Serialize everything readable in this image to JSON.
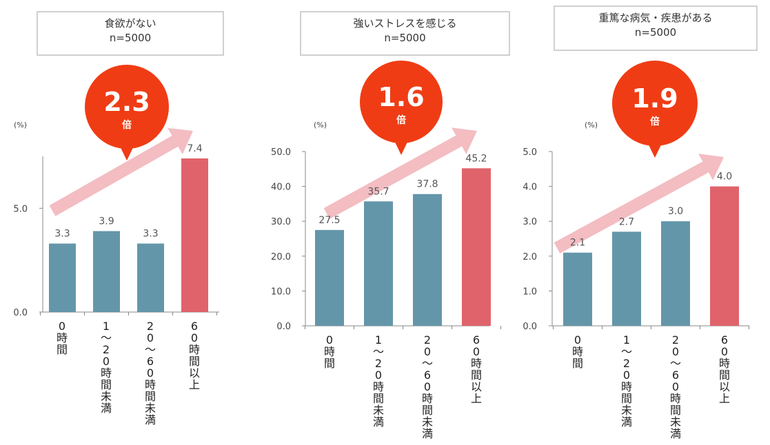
{
  "chart_data": [
    {
      "type": "bar",
      "title": "食欲がない",
      "subtitle": "n=5000",
      "unit": "(%)",
      "categories": [
        "0時間",
        "1～20時間未満",
        "20～60時間未満",
        "60時間以上"
      ],
      "values": [
        3.3,
        3.9,
        3.3,
        7.4
      ],
      "value_labels": [
        "3.3",
        "3.9",
        "3.3",
        "7.4"
      ],
      "yticks": [
        "0.0",
        "5.0"
      ],
      "ytick_values": [
        0,
        5
      ],
      "ylim": [
        0,
        7.5
      ],
      "ratio": "2.3",
      "ratio_unit": "倍",
      "grid": false
    },
    {
      "type": "bar",
      "title": "強いストレスを感じる",
      "subtitle": "n=5000",
      "unit": "(%)",
      "categories": [
        "0時間",
        "1～20時間未満",
        "20～60時間未満",
        "60時間以上"
      ],
      "values": [
        27.5,
        35.7,
        37.8,
        45.2
      ],
      "value_labels": [
        "27.5",
        "35.7",
        "37.8",
        "45.2"
      ],
      "yticks": [
        "0.0",
        "10.0",
        "20.0",
        "30.0",
        "40.0",
        "50.0"
      ],
      "ytick_values": [
        0,
        10,
        20,
        30,
        40,
        50
      ],
      "ylim": [
        0,
        50
      ],
      "ratio": "1.6",
      "ratio_unit": "倍",
      "grid": false
    },
    {
      "type": "bar",
      "title": "重篤な病気・疾患がある",
      "subtitle": "n=5000",
      "unit": "(%)",
      "categories": [
        "0時間",
        "1～20時間未満",
        "20～60時間未満",
        "60時間以上"
      ],
      "values": [
        2.1,
        2.7,
        3.0,
        4.0
      ],
      "value_labels": [
        "2.1",
        "2.7",
        "3.0",
        "4.0"
      ],
      "yticks": [
        "0.0",
        "1.0",
        "2.0",
        "3.0",
        "4.0",
        "5.0"
      ],
      "ytick_values": [
        0,
        1,
        2,
        3,
        4,
        5
      ],
      "ylim": [
        0,
        5
      ],
      "ratio": "1.9",
      "ratio_unit": "倍",
      "grid": false
    }
  ],
  "colors": {
    "bar": "#6496aa",
    "bar_highlight": "#e0636b",
    "badge": "#f03c14",
    "arrow": "#f2b6bb",
    "axis": "#888888"
  }
}
